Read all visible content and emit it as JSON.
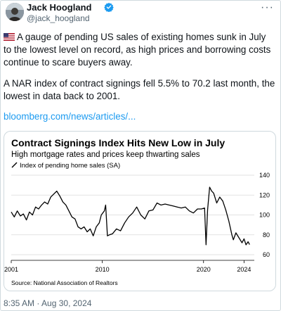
{
  "author": {
    "name": "Jack Hoogland",
    "handle": "@jack_hoogland"
  },
  "tweet": {
    "paragraph1": "A gauge of pending US sales of existing homes sunk in July to the lowest level on record, as high prices and borrowing costs continue to scare buyers away.",
    "paragraph2": "A NAR index of contract signings fell 5.5% to 70.2 last month, the lowest in data back to 2001.",
    "link": "bloomberg.com/news/articles/...",
    "timestamp": "8:35 AM · Aug 30, 2024"
  },
  "icons": {
    "avatar": "avatar-photo",
    "verified": "verified-badge-icon",
    "more": "more-icon",
    "flag": "us-flag-icon",
    "legend": "line-legend-icon"
  },
  "colors": {
    "line": "#000000",
    "link": "#1d9bf0",
    "verified": "#1d9bf0"
  },
  "chart_data": {
    "type": "line",
    "title": "Contract Signings Index Hits New Low in July",
    "subtitle": "High mortgage rates and prices keep thwarting sales",
    "legend": [
      "Index of pending home sales (SA)"
    ],
    "source": "Source: National Association of Realtors",
    "x_ticks": [
      "2001",
      "2010",
      "2020",
      "2024"
    ],
    "y_ticks": [
      "140",
      "120",
      "100",
      "80",
      "60"
    ],
    "xlim": [
      2001,
      2024.6
    ],
    "ylim": [
      60,
      140
    ],
    "grid": true,
    "series": [
      {
        "name": "Index of pending home sales (SA)",
        "x": [
          2001.0,
          2001.3,
          2001.6,
          2001.9,
          2002.2,
          2002.5,
          2002.8,
          2003.1,
          2003.4,
          2003.7,
          2004.0,
          2004.3,
          2004.6,
          2004.9,
          2005.2,
          2005.5,
          2005.8,
          2006.1,
          2006.4,
          2006.7,
          2007.0,
          2007.3,
          2007.6,
          2007.9,
          2008.2,
          2008.5,
          2008.8,
          2009.1,
          2009.4,
          2009.7,
          2009.9,
          2010.2,
          2010.33,
          2010.5,
          2010.7,
          2011.0,
          2011.4,
          2011.8,
          2012.2,
          2012.6,
          2013.0,
          2013.4,
          2013.8,
          2014.2,
          2014.6,
          2015.0,
          2015.4,
          2015.8,
          2016.2,
          2016.6,
          2017.0,
          2017.4,
          2017.8,
          2018.2,
          2018.6,
          2019.0,
          2019.4,
          2019.8,
          2020.1,
          2020.25,
          2020.4,
          2020.6,
          2020.8,
          2021.0,
          2021.3,
          2021.6,
          2021.9,
          2022.2,
          2022.5,
          2022.8,
          2022.95,
          2023.2,
          2023.5,
          2023.8,
          2024.0,
          2024.2,
          2024.4,
          2024.55
        ],
        "values": [
          103,
          98,
          104,
          99,
          101,
          95,
          103,
          100,
          108,
          106,
          110,
          113,
          111,
          118,
          121,
          124,
          119,
          113,
          110,
          104,
          98,
          96,
          88,
          86,
          88,
          83,
          86,
          79,
          88,
          92,
          100,
          104,
          110,
          79,
          80,
          81,
          86,
          84,
          92,
          98,
          102,
          108,
          100,
          96,
          104,
          105,
          112,
          110,
          111,
          110,
          109,
          108,
          107,
          108,
          104,
          102,
          106,
          106,
          107,
          70,
          105,
          128,
          124,
          122,
          112,
          118,
          114,
          105,
          94,
          80,
          75,
          82,
          77,
          72,
          76,
          70,
          73,
          70.2
        ]
      }
    ]
  }
}
